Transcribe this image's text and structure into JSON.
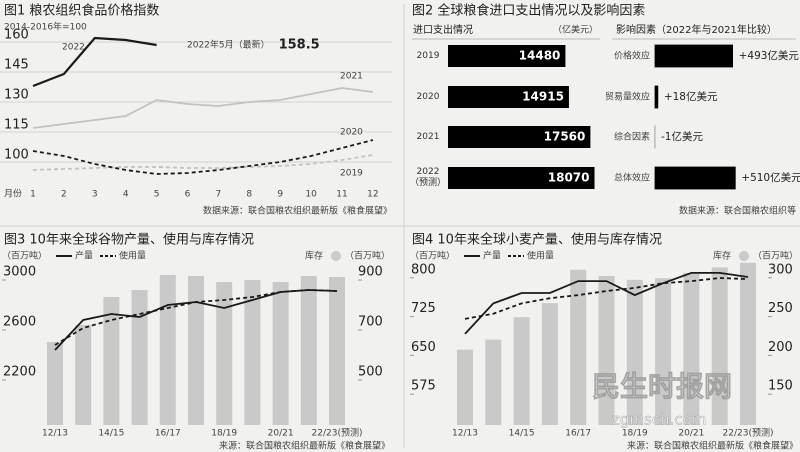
{
  "chart_data": [
    {
      "type": "line",
      "title": "图1 粮农组织食品价格指数",
      "subtitle": "2014-2016年=100",
      "xlabel": "月份",
      "categories": [
        "1",
        "2",
        "3",
        "4",
        "5",
        "6",
        "7",
        "8",
        "9",
        "10",
        "11",
        "12"
      ],
      "ylim": [
        88,
        163
      ],
      "yticks": [
        100,
        115,
        130,
        145,
        160
      ],
      "grid": true,
      "series": [
        {
          "name": "2022",
          "color": "#1a1a1a",
          "values": [
            138,
            144,
            162,
            161,
            158.5,
            null,
            null,
            null,
            null,
            null,
            null,
            null
          ],
          "value_labels": [
            null,
            null,
            null,
            null,
            "158.5",
            null,
            null,
            null,
            null,
            null,
            null,
            null
          ]
        },
        {
          "name": "2021",
          "color": "#c2c2c2",
          "values": [
            117,
            119,
            121,
            123,
            131,
            129,
            128,
            130,
            131,
            134,
            137,
            135
          ]
        },
        {
          "name": "2020",
          "color": "#1a1a1a",
          "dashed": true,
          "values": [
            105.5,
            103,
            99,
            96,
            94,
            94.5,
            96,
            98,
            100,
            103,
            107,
            111
          ]
        },
        {
          "name": "2019",
          "color": "#c2c2c2",
          "dashed": true,
          "values": [
            96,
            96.5,
            97,
            97.5,
            97.5,
            97,
            97,
            97.5,
            98,
            99,
            101,
            103.5
          ]
        }
      ],
      "annotations": [
        "2022年5月（最新）"
      ],
      "source": "数据来源：联合国粮农组织最新版《粮食展望》"
    },
    {
      "type": "hbar",
      "title": "图2 全球粮食进口支出情况以及影响因素",
      "panels": [
        {
          "header": "进口支出情况",
          "unit": "（亿美元）",
          "categories": [
            "2019",
            "2020",
            "2021",
            "2022（预测）"
          ],
          "values": [
            14480,
            14915,
            17560,
            18070
          ],
          "xlim": [
            0,
            18500
          ],
          "color": "#000000"
        },
        {
          "header": "影响因素（2022年与2021年比较）",
          "categories": [
            "价格效应",
            "贸易量效应",
            "综合因素",
            "总体效应"
          ],
          "values": [
            493,
            18,
            -1,
            510
          ],
          "value_labels": [
            "+493亿美元",
            "+18亿美元",
            "-1亿美元",
            "+510亿美元"
          ],
          "xlim": [
            0,
            540
          ],
          "color": "#000000"
        }
      ],
      "source": "数据来源：联合国粮农组织等"
    },
    {
      "type": "combo",
      "title": "图3 10年来全球谷物产量、使用与库存情况",
      "ylabel": "（百万吨）",
      "y2label": "（百万吨）",
      "categories": [
        "12/13",
        null,
        "14/15",
        null,
        "16/17",
        null,
        "18/19",
        null,
        "20/21",
        null,
        "22/23(预测)"
      ],
      "ylim": [
        1776,
        3080
      ],
      "yticks": [
        2200,
        2600,
        3000
      ],
      "y2lim": [
        288,
        940
      ],
      "y2ticks": [
        500,
        700,
        900
      ],
      "series": [
        {
          "name": "产量",
          "type": "line",
          "color": "#1a1a1a",
          "values": [
            2376,
            2616,
            2664,
            2640,
            2736,
            2760,
            2712,
            2776,
            2840,
            2856,
            2848
          ]
        },
        {
          "name": "使用量",
          "type": "line",
          "dashed": true,
          "color": "#1a1a1a",
          "values": [
            2416,
            2552,
            2616,
            2664,
            2712,
            2760,
            2776,
            2800,
            2840,
            2856,
            2848
          ]
        },
        {
          "name": "库存",
          "type": "bar",
          "axis": "y2",
          "color": "#c9c9c9",
          "values": [
            620,
            688,
            800,
            828,
            888,
            884,
            860,
            868,
            860,
            884,
            880
          ]
        }
      ],
      "source": "来源：联合国粮农组织最新版《粮食展望》"
    },
    {
      "type": "combo",
      "title": "图4 10年来全球小麦产量、使用与库存情况",
      "ylabel": "（百万吨）",
      "y2label": "（百万吨）",
      "categories": [
        "12/13",
        null,
        "14/15",
        null,
        "16/17",
        null,
        "18/19",
        null,
        "20/21",
        null,
        "22/23(预测)"
      ],
      "ylim": [
        500,
        815
      ],
      "yticks": [
        575,
        650,
        725,
        800
      ],
      "y2lim": [
        100,
        310
      ],
      "y2ticks": [
        150,
        200,
        250,
        300
      ],
      "series": [
        {
          "name": "产量",
          "type": "line",
          "color": "#1a1a1a",
          "values": [
            676,
            735,
            755,
            755,
            778,
            778,
            751,
            774,
            794,
            794,
            786
          ]
        },
        {
          "name": "使用量",
          "type": "line",
          "dashed": true,
          "color": "#1a1a1a",
          "values": [
            705,
            715,
            735,
            745,
            751,
            759,
            765,
            774,
            778,
            784,
            782
          ]
        },
        {
          "name": "库存",
          "type": "bar",
          "axis": "y2",
          "color": "#c9c9c9",
          "values": [
            197,
            210,
            239,
            257,
            300,
            292,
            287,
            289,
            296,
            303,
            309
          ]
        }
      ],
      "annotations": [
        "民生时报网",
        "zgmsch.com"
      ],
      "source": "来源：联合国粮农组织最新版《粮食展望》"
    }
  ]
}
